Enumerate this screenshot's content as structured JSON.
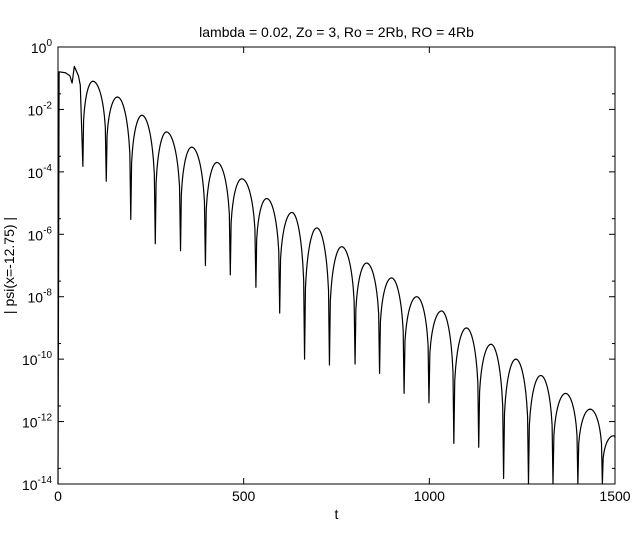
{
  "chart_data": {
    "type": "line",
    "title": "lambda = 0.02, Zo = 3, Ro = 2Rb, RO = 4Rb",
    "xlabel": "t",
    "ylabel": "| psi(x=-12.75) |",
    "xlim": [
      0,
      1500
    ],
    "ylim": [
      1e-14,
      1
    ],
    "yscale": "log",
    "grid": false,
    "xticks": [
      0,
      500,
      1000,
      1500
    ],
    "xtick_labels": [
      "0",
      "500",
      "1000",
      "1500"
    ],
    "yticks": [
      1e-14,
      1e-12,
      1e-10,
      1e-08,
      1e-06,
      0.0001,
      0.01,
      1
    ],
    "ytick_labels": [
      {
        "base": "10",
        "exp": "-14"
      },
      {
        "base": "10",
        "exp": "-12"
      },
      {
        "base": "10",
        "exp": "-10"
      },
      {
        "base": "10",
        "exp": "-8"
      },
      {
        "base": "10",
        "exp": "-6"
      },
      {
        "base": "10",
        "exp": "-4"
      },
      {
        "base": "10",
        "exp": "-2"
      },
      {
        "base": "10",
        "exp": "0"
      }
    ],
    "series": [
      {
        "color": "#000000",
        "start": [
          0,
          1e-14
        ],
        "early": [
          [
            3,
            0.16
          ],
          [
            20,
            0.15
          ],
          [
            32,
            0.12
          ],
          [
            38,
            0.07
          ],
          [
            44,
            0.24
          ],
          [
            55,
            0.12
          ],
          [
            60,
            0.06
          ]
        ],
        "minima": [
          [
            67,
            0.00015
          ],
          [
            130,
            5e-05
          ],
          [
            196,
            3e-06
          ],
          [
            262,
            5e-07
          ],
          [
            330,
            3e-07
          ],
          [
            397,
            1e-07
          ],
          [
            464,
            5e-08
          ],
          [
            533,
            2e-08
          ],
          [
            597,
            3e-09
          ],
          [
            664,
            1e-10
          ],
          [
            731,
            6.5e-11
          ],
          [
            800,
            7e-11
          ],
          [
            866,
            3.5e-11
          ],
          [
            932,
            8e-12
          ],
          [
            999,
            4e-12
          ],
          [
            1066,
            2e-13
          ],
          [
            1133,
            1.5e-13
          ],
          [
            1200,
            1.5e-14
          ],
          [
            1267,
            1e-14
          ],
          [
            1333,
            1e-14
          ],
          [
            1400,
            1e-14
          ],
          [
            1466,
            1e-14
          ]
        ],
        "peaks": [
          [
            94,
            0.08
          ],
          [
            160,
            0.025
          ],
          [
            226,
            0.0065
          ],
          [
            292,
            0.0019
          ],
          [
            360,
            0.00062
          ],
          [
            428,
            0.0002
          ],
          [
            495,
            6e-05
          ],
          [
            562,
            1.4e-05
          ],
          [
            630,
            5e-06
          ],
          [
            697,
            1.6e-06
          ],
          [
            764,
            4e-07
          ],
          [
            831,
            1.2e-07
          ],
          [
            898,
            4e-08
          ],
          [
            966,
            1e-08
          ],
          [
            1033,
            3.5e-09
          ],
          [
            1100,
            1e-09
          ],
          [
            1166,
            3e-10
          ],
          [
            1233,
            1e-10
          ],
          [
            1300,
            3e-11
          ],
          [
            1367,
            8e-12
          ],
          [
            1433,
            2.5e-12
          ],
          [
            1496,
            3.5e-13
          ]
        ],
        "end": [
          1500,
          3e-13
        ]
      }
    ]
  }
}
